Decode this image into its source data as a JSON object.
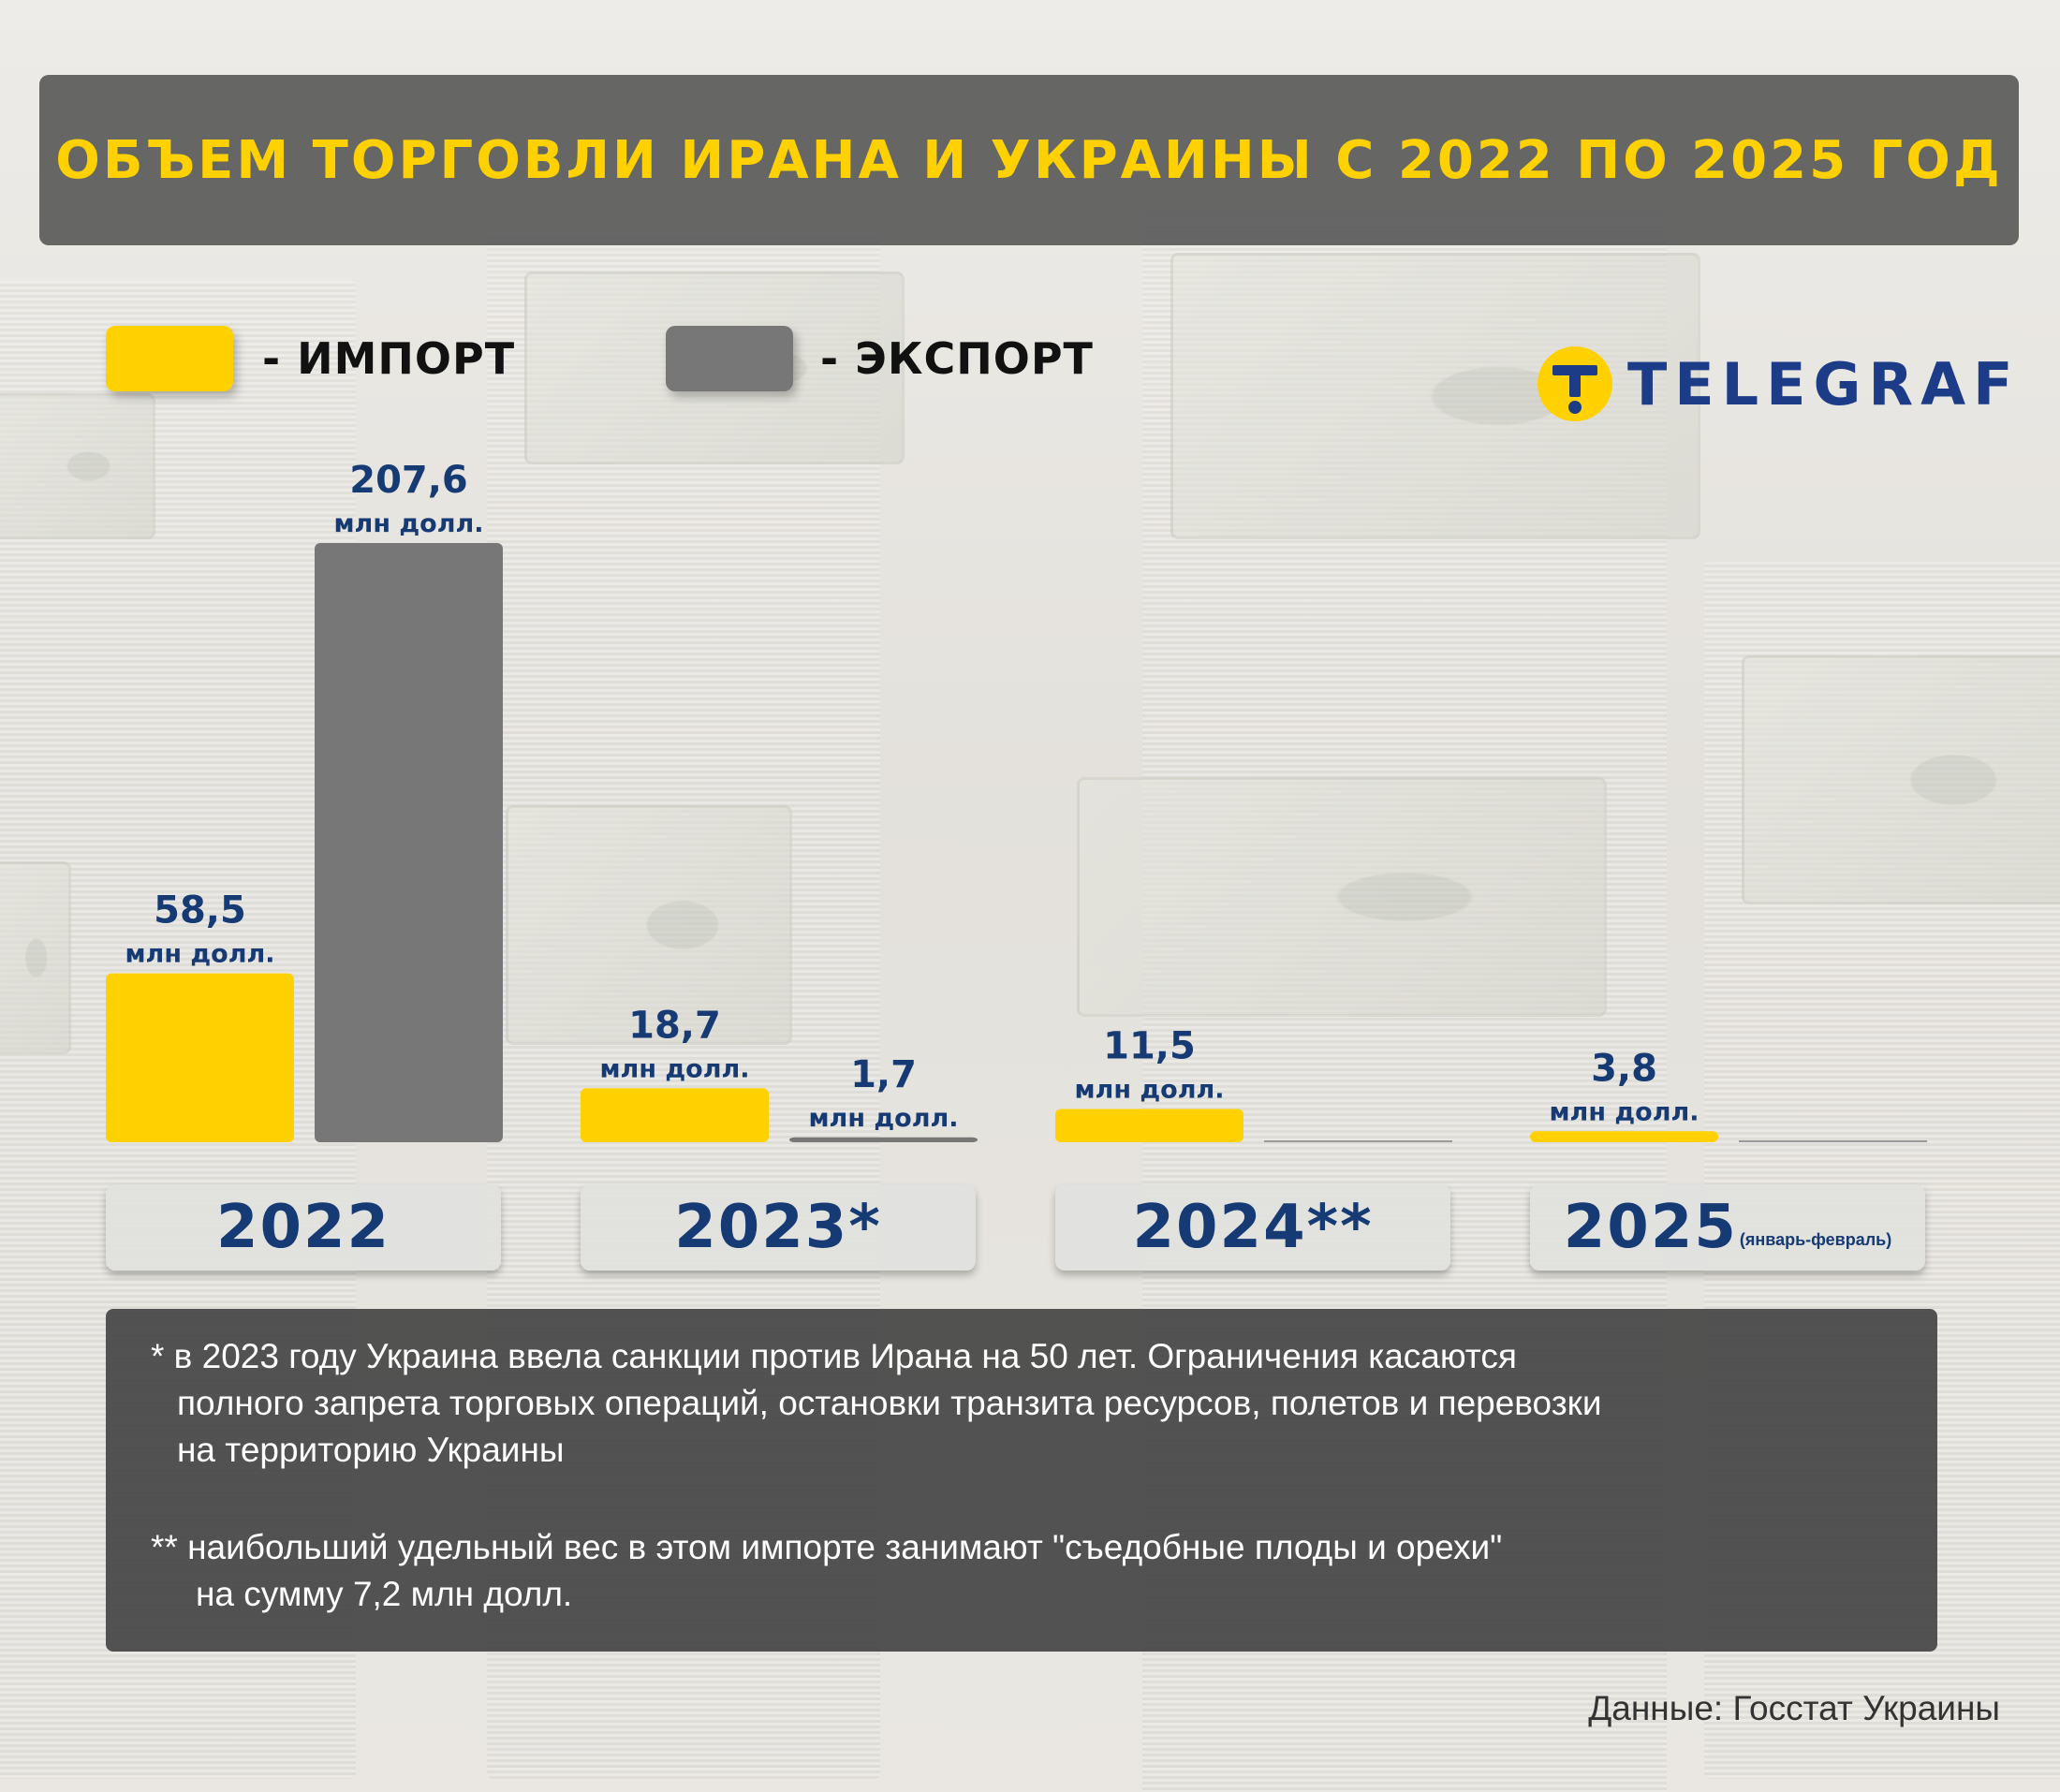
{
  "title": "ОБЪЕМ ТОРГОВЛИ ИРАНА И УКРАИНЫ С 2022 ПО 2025 ГОД",
  "legend": {
    "import_label": "- ИМПОРТ",
    "export_label": "- ЭКСПОРТ"
  },
  "logo": {
    "text": "TELEGRAF"
  },
  "colors": {
    "import": "#ffd100",
    "export": "#777777",
    "label": "#163a74",
    "title": "#ffd100"
  },
  "chart_data": {
    "type": "bar",
    "title": "ОБЪЕМ ТОРГОВЛИ ИРАНА И УКРАИНЫ С 2022 ПО 2025 ГОД",
    "categories": [
      "2022",
      "2023*",
      "2024**",
      "2025"
    ],
    "category_notes": [
      "",
      "",
      "",
      "(январь-февраль)"
    ],
    "unit_label": "млн долл.",
    "ylim": [
      0,
      207.6
    ],
    "series": [
      {
        "name": "ИМПОРТ",
        "values": [
          58.5,
          18.7,
          11.5,
          3.8
        ],
        "value_labels": [
          "58,5",
          "18,7",
          "11,5",
          "3,8"
        ]
      },
      {
        "name": "ЭКСПОРТ",
        "values": [
          207.6,
          1.7,
          0,
          0
        ],
        "value_labels": [
          "207,6",
          "1,7",
          "",
          ""
        ]
      }
    ]
  },
  "notes": {
    "note1_line1": "* в 2023 году Украина ввела санкции против Ирана на 50 лет. Ограничения касаются",
    "note1_line2": "полного запрета торговых операций, остановки транзита ресурсов, полетов и перевозки",
    "note1_line3": "на территорию Украины",
    "note2_line1": "** наибольший удельный вес в этом импорте занимают \"съедобные плоды и орехи\"",
    "note2_line2": "на сумму 7,2 млн долл."
  },
  "source": "Данные: Госстат Украины"
}
